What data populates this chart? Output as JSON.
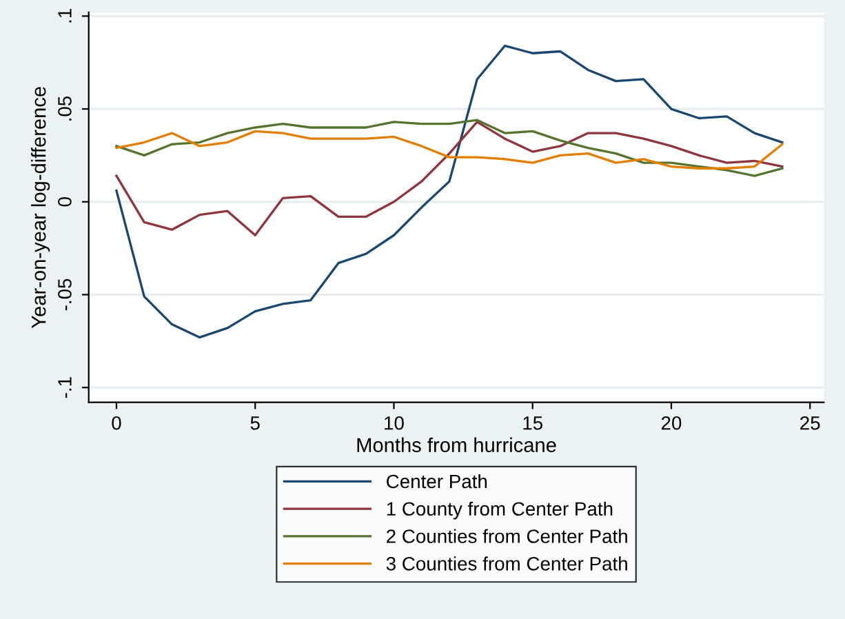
{
  "chart_data": {
    "type": "line",
    "xlabel": "Months from hurricane",
    "ylabel": "Year-on-year log-difference",
    "x": [
      0,
      1,
      2,
      3,
      4,
      5,
      6,
      7,
      8,
      9,
      10,
      11,
      12,
      13,
      14,
      15,
      16,
      17,
      18,
      19,
      20,
      21,
      22,
      23,
      24
    ],
    "series": [
      {
        "name": "Center Path",
        "color": "#1a476f",
        "values": [
          0.006,
          -0.051,
          -0.066,
          -0.073,
          -0.068,
          -0.059,
          -0.055,
          -0.053,
          -0.033,
          -0.028,
          -0.018,
          -0.003,
          0.011,
          0.066,
          0.084,
          0.08,
          0.081,
          0.071,
          0.065,
          0.066,
          0.05,
          0.045,
          0.046,
          0.037,
          0.032
        ]
      },
      {
        "name": "1 County from Center Path",
        "color": "#90353b",
        "values": [
          0.014,
          -0.011,
          -0.015,
          -0.007,
          -0.005,
          -0.018,
          0.002,
          0.003,
          -0.008,
          -0.008,
          0.0,
          0.011,
          0.026,
          0.043,
          0.034,
          0.027,
          0.03,
          0.037,
          0.037,
          0.034,
          0.03,
          0.025,
          0.021,
          0.022,
          0.019
        ]
      },
      {
        "name": "2 Counties from Center Path",
        "color": "#55752f",
        "values": [
          0.03,
          0.025,
          0.031,
          0.032,
          0.037,
          0.04,
          0.042,
          0.04,
          0.04,
          0.04,
          0.043,
          0.042,
          0.042,
          0.044,
          0.037,
          0.038,
          0.033,
          0.029,
          0.026,
          0.021,
          0.021,
          0.019,
          0.017,
          0.014,
          0.018
        ]
      },
      {
        "name": "3 Counties from Center Path",
        "color": "#e37e00",
        "values": [
          0.029,
          0.032,
          0.037,
          0.03,
          0.032,
          0.038,
          0.037,
          0.034,
          0.034,
          0.034,
          0.035,
          0.03,
          0.024,
          0.024,
          0.023,
          0.021,
          0.025,
          0.026,
          0.021,
          0.023,
          0.019,
          0.018,
          0.018,
          0.019,
          0.031
        ]
      }
    ],
    "xlim": [
      -1,
      25.5
    ],
    "xticks": [
      0,
      5,
      10,
      15,
      20,
      25
    ],
    "ylim": [
      -0.108,
      0.102
    ],
    "yticks": [
      {
        "value": -0.1,
        "label": "-.1"
      },
      {
        "value": -0.05,
        "label": "-.05"
      },
      {
        "value": 0,
        "label": "0"
      },
      {
        "value": 0.05,
        "label": ".05"
      },
      {
        "value": 0.1,
        "label": ".1"
      }
    ],
    "grid": "y",
    "legend": "bottom",
    "marker": "none",
    "line_style": "solid"
  }
}
